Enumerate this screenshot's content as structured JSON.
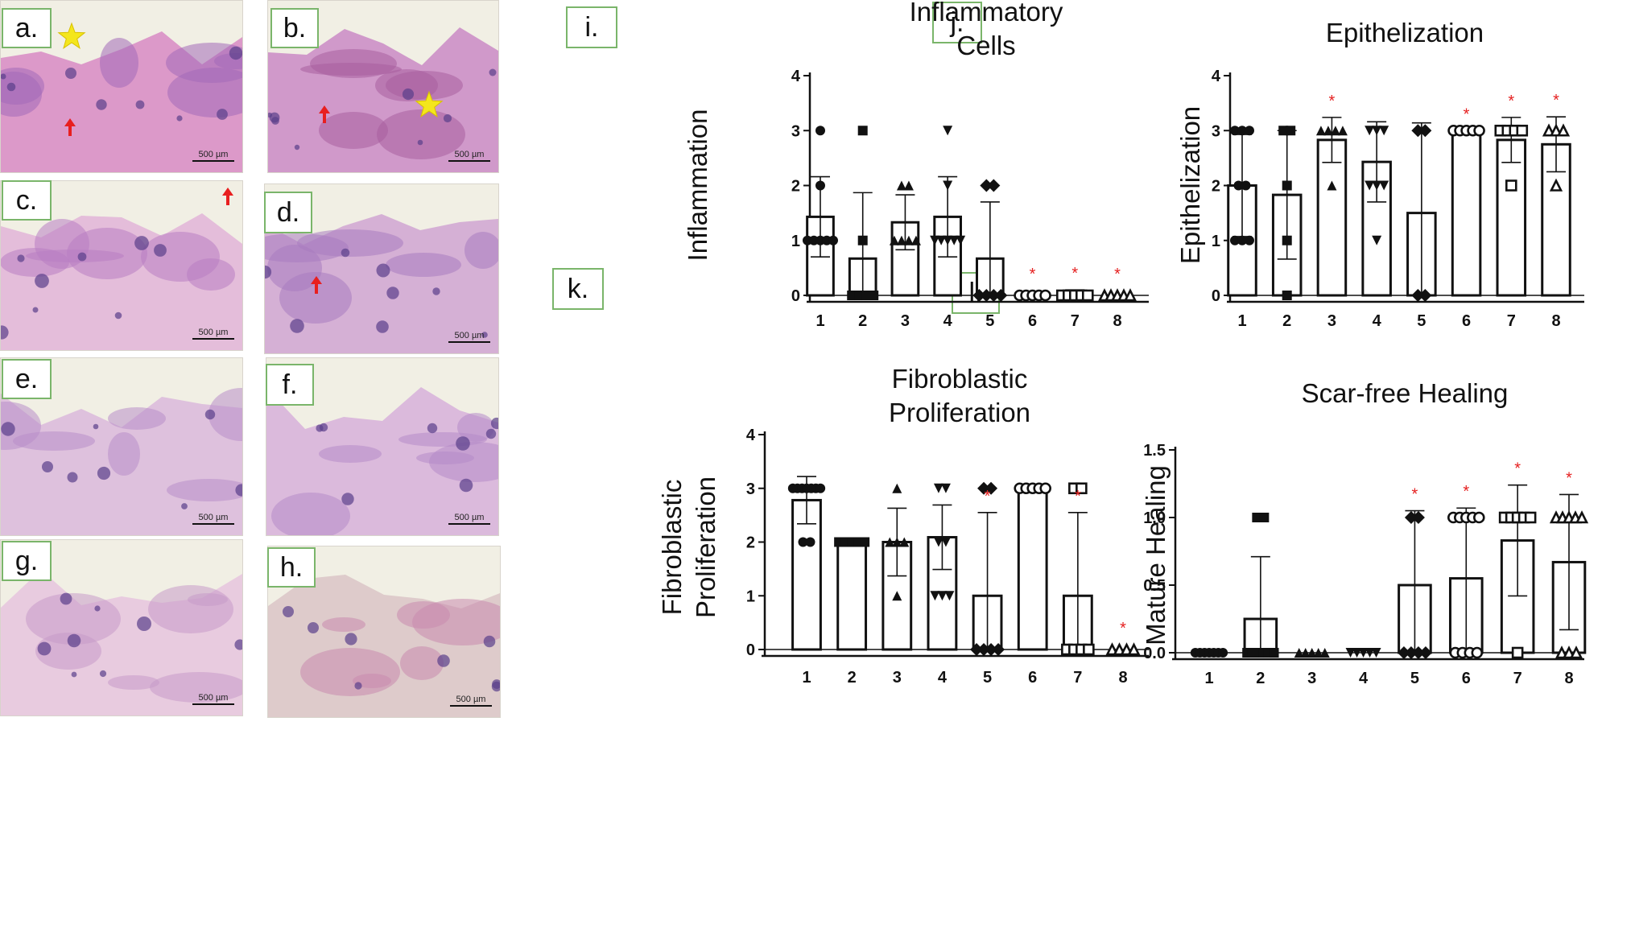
{
  "histology": {
    "panels": [
      {
        "id": "a",
        "label": "a.",
        "scale": "500 µm",
        "bg": "#d98fc5",
        "tissue": "#a36ab8",
        "star": true,
        "arrow": true
      },
      {
        "id": "b",
        "label": "b.",
        "scale": "500 µm",
        "bg": "#cc8fc6",
        "tissue": "#a85f9e",
        "star": true,
        "arrow": true
      },
      {
        "id": "c",
        "label": "c.",
        "scale": "500 µm",
        "bg": "#e2b7d8",
        "tissue": "#b87ec3",
        "star": false,
        "arrow": true
      },
      {
        "id": "d",
        "label": "d.",
        "scale": "500 µm",
        "bg": "#d1a9d3",
        "tissue": "#a77cc0",
        "star": false,
        "arrow": true
      },
      {
        "id": "e",
        "label": "e.",
        "scale": "500 µm",
        "bg": "#dbbbdc",
        "tissue": "#b88ec9",
        "star": false,
        "arrow": false
      },
      {
        "id": "f",
        "label": "f.",
        "scale": "500 µm",
        "bg": "#d8b4da",
        "tissue": "#b48bc8",
        "star": false,
        "arrow": false
      },
      {
        "id": "g",
        "label": "g.",
        "scale": "500 µm",
        "bg": "#e7c7de",
        "tissue": "#c79ac9",
        "star": false,
        "arrow": false
      },
      {
        "id": "h",
        "label": "h.",
        "scale": "500 µm",
        "bg": "#dcc6c8",
        "tissue": "#c98aae",
        "star": false,
        "arrow": false
      }
    ]
  },
  "chart_data": [
    {
      "panel_label": "i.",
      "type": "bar",
      "title": "Inflammatory Cells",
      "title_lines": [
        "Inflammatory",
        "Cells"
      ],
      "ylabel": "Inflammation",
      "ylabel_lines": [
        "Inflammation"
      ],
      "categories": [
        "1",
        "2",
        "3",
        "4",
        "5",
        "6",
        "7",
        "8"
      ],
      "values": [
        1.43,
        0.67,
        1.33,
        1.43,
        0.67,
        0,
        0,
        0
      ],
      "errors": [
        0.73,
        1.2,
        0.5,
        0.73,
        1.03,
        0,
        0.1,
        0
      ],
      "significant": [
        false,
        false,
        false,
        false,
        false,
        true,
        true,
        true
      ],
      "markers": [
        "circle",
        "square",
        "triangle",
        "triangle-down",
        "diamond",
        "circle-open",
        "square-open",
        "triangle-open"
      ],
      "points": [
        [
          3,
          2,
          1,
          1,
          1,
          1,
          1
        ],
        [
          3,
          1,
          0,
          0,
          0,
          0
        ],
        [
          2,
          2,
          1,
          1,
          1,
          1
        ],
        [
          3,
          2,
          1,
          1,
          1,
          1,
          1
        ],
        [
          2,
          2,
          0,
          0,
          0,
          0
        ],
        [
          0,
          0,
          0,
          0,
          0
        ],
        [
          0,
          0,
          0,
          0,
          0
        ],
        [
          0,
          0,
          0,
          0,
          0
        ]
      ],
      "ylim": [
        0,
        4
      ],
      "yticks": [
        "0",
        "1",
        "2",
        "3",
        "4"
      ],
      "significance_marker": "*"
    },
    {
      "panel_label": "j.",
      "type": "bar",
      "title": "Epithelization",
      "title_lines": [
        "Epithelization"
      ],
      "ylabel": "Epithelization",
      "ylabel_lines": [
        "Epithelization"
      ],
      "categories": [
        "1",
        "2",
        "3",
        "4",
        "5",
        "6",
        "7",
        "8"
      ],
      "values": [
        2.0,
        1.83,
        2.83,
        2.43,
        1.5,
        3.0,
        2.83,
        2.75
      ],
      "errors": [
        0.93,
        1.17,
        0.41,
        0.73,
        1.64,
        0,
        0.41,
        0.5
      ],
      "significant": [
        false,
        false,
        true,
        false,
        false,
        true,
        true,
        true
      ],
      "markers": [
        "circle",
        "square",
        "triangle",
        "triangle-down",
        "diamond",
        "circle-open",
        "square-open",
        "triangle-open"
      ],
      "points": [
        [
          3,
          3,
          3,
          2,
          2,
          1,
          1,
          1
        ],
        [
          3,
          3,
          2,
          1,
          0
        ],
        [
          3,
          3,
          3,
          3,
          2
        ],
        [
          3,
          3,
          3,
          2,
          2,
          2,
          1
        ],
        [
          3,
          3,
          0,
          0
        ],
        [
          3,
          3,
          3,
          3,
          3
        ],
        [
          3,
          3,
          3,
          3,
          2
        ],
        [
          3,
          3,
          3,
          2
        ]
      ],
      "ylim": [
        0,
        4
      ],
      "yticks": [
        "0",
        "1",
        "2",
        "3",
        "4"
      ],
      "significance_marker": "*"
    },
    {
      "panel_label": "k.",
      "type": "bar",
      "title": "Fibroblastic Proliferation",
      "title_lines": [
        "Fibroblastic",
        "Proliferation"
      ],
      "ylabel": "Fibroblastic Proliferation",
      "ylabel_lines": [
        "Fibroblastic",
        "Proliferation"
      ],
      "categories": [
        "1",
        "2",
        "3",
        "4",
        "5",
        "6",
        "7",
        "8"
      ],
      "values": [
        2.78,
        2.0,
        2.0,
        2.09,
        1.0,
        3.0,
        1.0,
        0
      ],
      "errors": [
        0.44,
        0,
        0.63,
        0.6,
        1.55,
        0,
        1.55,
        0
      ],
      "significant": [
        false,
        false,
        false,
        false,
        true,
        false,
        true,
        true
      ],
      "markers": [
        "circle",
        "square",
        "triangle",
        "triangle-down",
        "diamond",
        "circle-open",
        "square-open",
        "triangle-open"
      ],
      "points": [
        [
          3,
          3,
          3,
          3,
          3,
          3,
          3,
          2,
          2
        ],
        [
          2,
          2,
          2,
          2,
          2
        ],
        [
          3,
          2,
          2,
          2,
          1
        ],
        [
          3,
          3,
          2,
          2,
          1,
          1,
          1
        ],
        [
          3,
          3,
          0,
          0,
          0,
          0
        ],
        [
          3,
          3,
          3,
          3,
          3
        ],
        [
          3,
          3,
          0,
          0,
          0,
          0
        ],
        [
          0,
          0,
          0,
          0
        ]
      ],
      "ylim": [
        0,
        4
      ],
      "yticks": [
        "0",
        "1",
        "2",
        "3",
        "4"
      ],
      "significance_marker": "*"
    },
    {
      "panel_label": "l.",
      "type": "bar",
      "title": "Scar-free Healing",
      "title_lines": [
        "Scar-free Healing"
      ],
      "ylabel": "Mature Healing",
      "ylabel_lines": [
        "Mature Healing"
      ],
      "categories": [
        "1",
        "2",
        "3",
        "4",
        "5",
        "6",
        "7",
        "8"
      ],
      "values": [
        0,
        0.25,
        0,
        0,
        0.5,
        0.55,
        0.83,
        0.67
      ],
      "errors": [
        0,
        0.46,
        0,
        0,
        0.55,
        0.52,
        0.41,
        0.5
      ],
      "significant": [
        false,
        false,
        false,
        false,
        true,
        true,
        true,
        true
      ],
      "markers": [
        "circle",
        "square",
        "triangle",
        "triangle-down",
        "diamond",
        "circle-open",
        "square-open",
        "triangle-open"
      ],
      "points": [
        [
          0,
          0,
          0,
          0,
          0,
          0,
          0
        ],
        [
          1,
          1,
          0,
          0,
          0,
          0,
          0,
          0
        ],
        [
          0,
          0,
          0,
          0,
          0
        ],
        [
          0,
          0,
          0,
          0,
          0
        ],
        [
          1,
          1,
          0,
          0,
          0,
          0
        ],
        [
          1,
          1,
          1,
          1,
          1,
          0,
          0,
          0,
          0
        ],
        [
          1,
          1,
          1,
          1,
          1,
          0
        ],
        [
          1,
          1,
          1,
          1,
          1,
          0,
          0,
          0
        ]
      ],
      "ylim": [
        0,
        1.5
      ],
      "yticks": [
        "0.0",
        "0.5",
        "1.0",
        "1.5"
      ],
      "significance_marker": "*"
    }
  ]
}
